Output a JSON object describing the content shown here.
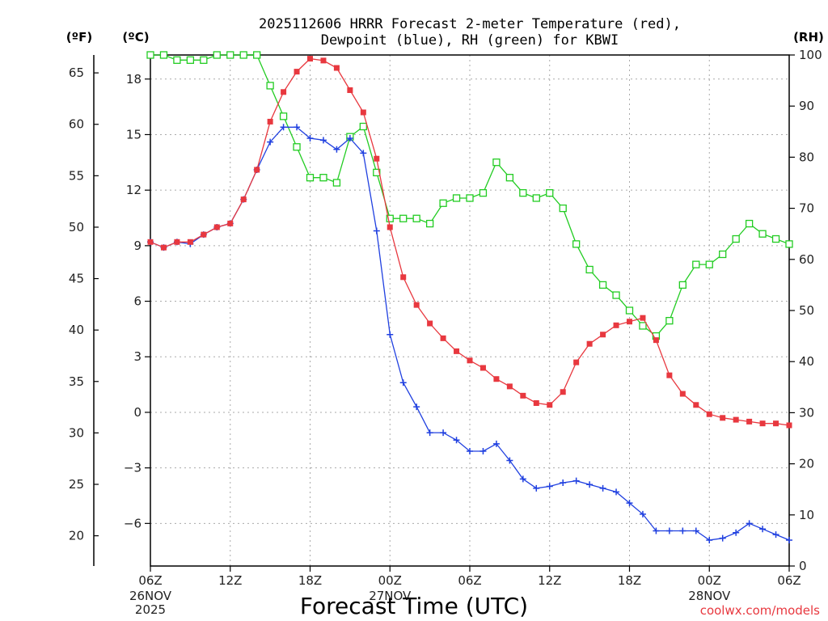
{
  "chart_data": {
    "type": "line",
    "title_line1": "2025112606 HRRR Forecast 2-meter Temperature (red),",
    "title_line2": "Dewpoint (blue), RH (green) for KBWI",
    "unit_f": "(ºF)",
    "unit_c": "(ºC)",
    "unit_rh": "(RH)",
    "xlabel": "Forecast Time (UTC)",
    "credit": "coolwx.com/models",
    "x_hours": [
      0,
      1,
      2,
      3,
      4,
      5,
      6,
      7,
      8,
      9,
      10,
      11,
      12,
      13,
      14,
      15,
      16,
      17,
      18,
      19,
      20,
      21,
      22,
      23,
      24,
      25,
      26,
      27,
      28,
      29,
      30,
      31,
      32,
      33,
      34,
      35,
      36,
      37,
      38,
      39,
      40,
      41,
      42,
      43,
      44,
      45,
      46,
      47,
      48
    ],
    "xlim_hours": [
      0,
      48
    ],
    "x_ticks": [
      {
        "h": 0,
        "label": "06Z"
      },
      {
        "h": 6,
        "label": "12Z"
      },
      {
        "h": 12,
        "label": "18Z"
      },
      {
        "h": 18,
        "label": "00Z"
      },
      {
        "h": 24,
        "label": "06Z"
      },
      {
        "h": 30,
        "label": "12Z"
      },
      {
        "h": 36,
        "label": "18Z"
      },
      {
        "h": 42,
        "label": "00Z"
      },
      {
        "h": 48,
        "label": "06Z"
      }
    ],
    "date_labels": [
      {
        "h": 0,
        "line1": "26NOV",
        "line2": "2025"
      },
      {
        "h": 18,
        "line1": "27NOV",
        "line2": ""
      },
      {
        "h": 42,
        "line1": "28NOV",
        "line2": ""
      }
    ],
    "ylim_c": [
      -8.3,
      19.3
    ],
    "yticks_c": [
      -6,
      -3,
      0,
      3,
      6,
      9,
      12,
      15,
      18
    ],
    "yticks_c_labels": [
      "−6",
      "−3",
      "0",
      "3",
      "6",
      "9",
      "12",
      "15",
      "18"
    ],
    "yticks_f": [
      20,
      25,
      30,
      35,
      40,
      45,
      50,
      55,
      60,
      65
    ],
    "ylim_rh": [
      0,
      100
    ],
    "yticks_rh": [
      0,
      10,
      20,
      30,
      40,
      50,
      60,
      70,
      80,
      90,
      100
    ],
    "series": [
      {
        "name": "Temperature",
        "unit": "C",
        "color": "#e8383f",
        "marker": "filled-square",
        "values": [
          9.2,
          8.9,
          9.2,
          9.2,
          9.6,
          10.0,
          10.2,
          11.5,
          13.1,
          15.7,
          17.3,
          18.4,
          19.1,
          19.0,
          18.6,
          17.4,
          16.2,
          13.7,
          10.0,
          7.3,
          5.8,
          4.8,
          4.0,
          3.3,
          2.8,
          2.4,
          1.8,
          1.4,
          0.9,
          0.5,
          0.4,
          1.1,
          2.7,
          3.7,
          4.2,
          4.7,
          4.9,
          5.1,
          3.9,
          2.0,
          1.0,
          0.4,
          -0.1,
          -0.3,
          -0.4,
          -0.5,
          -0.6,
          -0.6,
          -0.7
        ]
      },
      {
        "name": "Dewpoint",
        "unit": "C",
        "color": "#2040e0",
        "marker": "plus",
        "values": [
          9.2,
          8.9,
          9.2,
          9.1,
          9.6,
          10.0,
          10.2,
          11.5,
          13.1,
          14.6,
          15.4,
          15.4,
          14.8,
          14.7,
          14.2,
          14.8,
          14.0,
          9.8,
          4.2,
          1.6,
          0.3,
          -1.1,
          -1.1,
          -1.5,
          -2.1,
          -2.1,
          -1.7,
          -2.6,
          -3.6,
          -4.1,
          -4.0,
          -3.8,
          -3.7,
          -3.9,
          -4.1,
          -4.3,
          -4.9,
          -5.5,
          -6.4,
          -6.4,
          -6.4,
          -6.4,
          -6.9,
          -6.8,
          -6.5,
          -6.0,
          -6.3,
          -6.6,
          -6.9
        ]
      },
      {
        "name": "RH",
        "unit": "%",
        "color": "#22cc22",
        "marker": "open-square",
        "values": [
          100,
          100,
          99,
          99,
          99,
          100,
          100,
          100,
          100,
          94,
          88,
          82,
          76,
          76,
          75,
          84,
          86,
          77,
          68,
          68,
          68,
          67,
          71,
          72,
          72,
          73,
          79,
          76,
          73,
          72,
          73,
          70,
          63,
          58,
          55,
          53,
          50,
          47,
          45,
          48,
          55,
          59,
          59,
          61,
          64,
          67,
          65,
          64,
          63
        ]
      }
    ]
  }
}
